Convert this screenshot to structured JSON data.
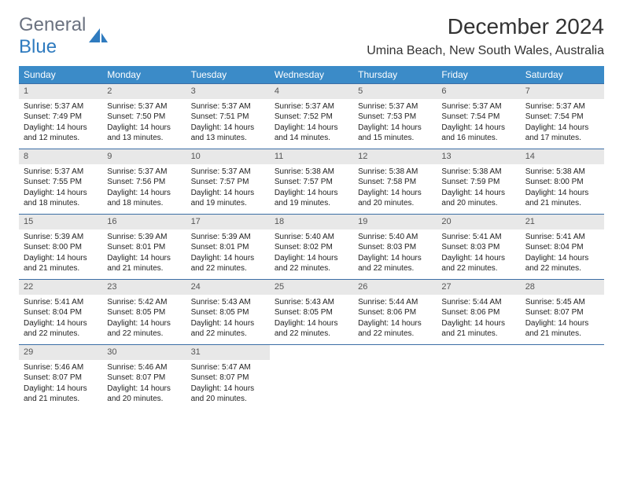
{
  "logo": {
    "general": "General",
    "blue": "Blue"
  },
  "title": "December 2024",
  "location": "Umina Beach, New South Wales, Australia",
  "colors": {
    "header_bg": "#3b8bc8",
    "header_text": "#ffffff",
    "daynum_bg": "#e8e8e8",
    "daynum_text": "#555555",
    "row_border": "#3b6ea5",
    "logo_gray": "#6b7280",
    "logo_blue": "#2f7bbf",
    "body_text": "#222222"
  },
  "fonts": {
    "title_size": 28,
    "location_size": 16,
    "header_size": 12,
    "daynum_size": 11,
    "cell_size": 10
  },
  "day_headers": [
    "Sunday",
    "Monday",
    "Tuesday",
    "Wednesday",
    "Thursday",
    "Friday",
    "Saturday"
  ],
  "weeks": [
    [
      {
        "n": "1",
        "sunrise": "5:37 AM",
        "sunset": "7:49 PM",
        "daylight": "14 hours and 12 minutes."
      },
      {
        "n": "2",
        "sunrise": "5:37 AM",
        "sunset": "7:50 PM",
        "daylight": "14 hours and 13 minutes."
      },
      {
        "n": "3",
        "sunrise": "5:37 AM",
        "sunset": "7:51 PM",
        "daylight": "14 hours and 13 minutes."
      },
      {
        "n": "4",
        "sunrise": "5:37 AM",
        "sunset": "7:52 PM",
        "daylight": "14 hours and 14 minutes."
      },
      {
        "n": "5",
        "sunrise": "5:37 AM",
        "sunset": "7:53 PM",
        "daylight": "14 hours and 15 minutes."
      },
      {
        "n": "6",
        "sunrise": "5:37 AM",
        "sunset": "7:54 PM",
        "daylight": "14 hours and 16 minutes."
      },
      {
        "n": "7",
        "sunrise": "5:37 AM",
        "sunset": "7:54 PM",
        "daylight": "14 hours and 17 minutes."
      }
    ],
    [
      {
        "n": "8",
        "sunrise": "5:37 AM",
        "sunset": "7:55 PM",
        "daylight": "14 hours and 18 minutes."
      },
      {
        "n": "9",
        "sunrise": "5:37 AM",
        "sunset": "7:56 PM",
        "daylight": "14 hours and 18 minutes."
      },
      {
        "n": "10",
        "sunrise": "5:37 AM",
        "sunset": "7:57 PM",
        "daylight": "14 hours and 19 minutes."
      },
      {
        "n": "11",
        "sunrise": "5:38 AM",
        "sunset": "7:57 PM",
        "daylight": "14 hours and 19 minutes."
      },
      {
        "n": "12",
        "sunrise": "5:38 AM",
        "sunset": "7:58 PM",
        "daylight": "14 hours and 20 minutes."
      },
      {
        "n": "13",
        "sunrise": "5:38 AM",
        "sunset": "7:59 PM",
        "daylight": "14 hours and 20 minutes."
      },
      {
        "n": "14",
        "sunrise": "5:38 AM",
        "sunset": "8:00 PM",
        "daylight": "14 hours and 21 minutes."
      }
    ],
    [
      {
        "n": "15",
        "sunrise": "5:39 AM",
        "sunset": "8:00 PM",
        "daylight": "14 hours and 21 minutes."
      },
      {
        "n": "16",
        "sunrise": "5:39 AM",
        "sunset": "8:01 PM",
        "daylight": "14 hours and 21 minutes."
      },
      {
        "n": "17",
        "sunrise": "5:39 AM",
        "sunset": "8:01 PM",
        "daylight": "14 hours and 22 minutes."
      },
      {
        "n": "18",
        "sunrise": "5:40 AM",
        "sunset": "8:02 PM",
        "daylight": "14 hours and 22 minutes."
      },
      {
        "n": "19",
        "sunrise": "5:40 AM",
        "sunset": "8:03 PM",
        "daylight": "14 hours and 22 minutes."
      },
      {
        "n": "20",
        "sunrise": "5:41 AM",
        "sunset": "8:03 PM",
        "daylight": "14 hours and 22 minutes."
      },
      {
        "n": "21",
        "sunrise": "5:41 AM",
        "sunset": "8:04 PM",
        "daylight": "14 hours and 22 minutes."
      }
    ],
    [
      {
        "n": "22",
        "sunrise": "5:41 AM",
        "sunset": "8:04 PM",
        "daylight": "14 hours and 22 minutes."
      },
      {
        "n": "23",
        "sunrise": "5:42 AM",
        "sunset": "8:05 PM",
        "daylight": "14 hours and 22 minutes."
      },
      {
        "n": "24",
        "sunrise": "5:43 AM",
        "sunset": "8:05 PM",
        "daylight": "14 hours and 22 minutes."
      },
      {
        "n": "25",
        "sunrise": "5:43 AM",
        "sunset": "8:05 PM",
        "daylight": "14 hours and 22 minutes."
      },
      {
        "n": "26",
        "sunrise": "5:44 AM",
        "sunset": "8:06 PM",
        "daylight": "14 hours and 22 minutes."
      },
      {
        "n": "27",
        "sunrise": "5:44 AM",
        "sunset": "8:06 PM",
        "daylight": "14 hours and 21 minutes."
      },
      {
        "n": "28",
        "sunrise": "5:45 AM",
        "sunset": "8:07 PM",
        "daylight": "14 hours and 21 minutes."
      }
    ],
    [
      {
        "n": "29",
        "sunrise": "5:46 AM",
        "sunset": "8:07 PM",
        "daylight": "14 hours and 21 minutes."
      },
      {
        "n": "30",
        "sunrise": "5:46 AM",
        "sunset": "8:07 PM",
        "daylight": "14 hours and 20 minutes."
      },
      {
        "n": "31",
        "sunrise": "5:47 AM",
        "sunset": "8:07 PM",
        "daylight": "14 hours and 20 minutes."
      },
      null,
      null,
      null,
      null
    ]
  ],
  "labels": {
    "sunrise": "Sunrise:",
    "sunset": "Sunset:",
    "daylight": "Daylight:"
  }
}
